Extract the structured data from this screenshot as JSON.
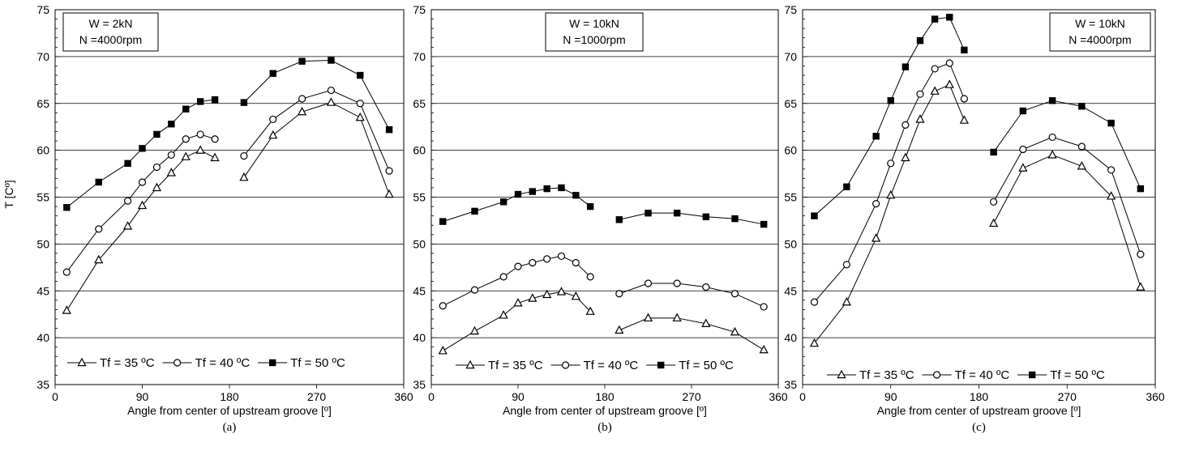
{
  "figure": {
    "ylabel": "T [Cº]",
    "legend_labels": [
      "Tf = 35 ºC",
      "Tf = 40 ºC",
      "Tf = 50 ºC"
    ]
  },
  "chart_data": [
    {
      "type": "line",
      "caption": "(a)",
      "annotation": [
        "W = 2kN",
        "N =4000rpm"
      ],
      "xlabel": "Angle from center of upstream groove [º]",
      "ylabel": "T [Cº]",
      "xlim": [
        0,
        360
      ],
      "ylim": [
        35,
        75
      ],
      "xticks": [
        0,
        90,
        180,
        270,
        360
      ],
      "yticks": [
        35,
        40,
        45,
        50,
        55,
        60,
        65,
        70,
        75
      ],
      "grid": "horizontal",
      "legend": "bottom",
      "series": [
        {
          "name": "Tf = 35 ºC",
          "marker": "triangle-open",
          "segments": [
            {
              "x": [
                12,
                45,
                75,
                90,
                105,
                120,
                135,
                150,
                165
              ],
              "y": [
                42.9,
                48.3,
                51.9,
                54.1,
                56.0,
                57.6,
                59.3,
                60.0,
                59.2
              ]
            },
            {
              "x": [
                195,
                225,
                255,
                285,
                315,
                345
              ],
              "y": [
                57.1,
                61.6,
                64.1,
                65.1,
                63.5,
                55.3
              ]
            }
          ]
        },
        {
          "name": "Tf = 40 ºC",
          "marker": "circle-open",
          "segments": [
            {
              "x": [
                12,
                45,
                75,
                90,
                105,
                120,
                135,
                150,
                165
              ],
              "y": [
                47.0,
                51.6,
                54.6,
                56.6,
                58.2,
                59.5,
                61.2,
                61.7,
                61.2
              ]
            },
            {
              "x": [
                195,
                225,
                255,
                285,
                315,
                345
              ],
              "y": [
                59.4,
                63.3,
                65.5,
                66.4,
                65.0,
                57.8
              ]
            }
          ]
        },
        {
          "name": "Tf = 50 ºC",
          "marker": "square-filled",
          "segments": [
            {
              "x": [
                12,
                45,
                75,
                90,
                105,
                120,
                135,
                150,
                165
              ],
              "y": [
                53.9,
                56.6,
                58.6,
                60.2,
                61.7,
                62.8,
                64.4,
                65.2,
                65.4
              ]
            },
            {
              "x": [
                195,
                225,
                255,
                285,
                315,
                345
              ],
              "y": [
                65.1,
                68.2,
                69.5,
                69.6,
                68.0,
                62.2
              ]
            }
          ]
        }
      ]
    },
    {
      "type": "line",
      "caption": "(b)",
      "annotation": [
        "W = 10kN",
        "N =1000rpm"
      ],
      "xlabel": "Angle from center of upstream groove [º]",
      "xlim": [
        0,
        360
      ],
      "ylim": [
        35,
        75
      ],
      "xticks": [
        0,
        90,
        180,
        270,
        360
      ],
      "yticks": [
        35,
        40,
        45,
        50,
        55,
        60,
        65,
        70,
        75
      ],
      "grid": "horizontal",
      "legend": "bottom",
      "series": [
        {
          "name": "Tf = 35 ºC",
          "marker": "triangle-open",
          "segments": [
            {
              "x": [
                12,
                45,
                75,
                90,
                105,
                120,
                135,
                150,
                165
              ],
              "y": [
                38.6,
                40.7,
                42.4,
                43.7,
                44.2,
                44.6,
                44.9,
                44.4,
                42.8
              ]
            },
            {
              "x": [
                195,
                225,
                255,
                285,
                315,
                345
              ],
              "y": [
                40.8,
                42.1,
                42.1,
                41.5,
                40.6,
                38.7
              ]
            }
          ]
        },
        {
          "name": "Tf = 40 ºC",
          "marker": "circle-open",
          "segments": [
            {
              "x": [
                12,
                45,
                75,
                90,
                105,
                120,
                135,
                150,
                165
              ],
              "y": [
                43.4,
                45.1,
                46.5,
                47.6,
                48.0,
                48.4,
                48.7,
                48.0,
                46.5
              ]
            },
            {
              "x": [
                195,
                225,
                255,
                285,
                315,
                345
              ],
              "y": [
                44.7,
                45.8,
                45.8,
                45.4,
                44.7,
                43.3
              ]
            }
          ]
        },
        {
          "name": "Tf = 50 ºC",
          "marker": "square-filled",
          "segments": [
            {
              "x": [
                12,
                45,
                75,
                90,
                105,
                120,
                135,
                150,
                165
              ],
              "y": [
                52.4,
                53.5,
                54.5,
                55.3,
                55.6,
                55.9,
                56.0,
                55.2,
                54.0
              ]
            },
            {
              "x": [
                195,
                225,
                255,
                285,
                315,
                345
              ],
              "y": [
                52.6,
                53.3,
                53.3,
                52.9,
                52.7,
                52.1
              ]
            }
          ]
        }
      ]
    },
    {
      "type": "line",
      "caption": "(c)",
      "annotation": [
        "W = 10kN",
        "N =4000rpm"
      ],
      "xlabel": "Angle from center of upstream groove [º]",
      "xlim": [
        0,
        360
      ],
      "ylim": [
        35,
        75
      ],
      "xticks": [
        0,
        90,
        180,
        270,
        360
      ],
      "yticks": [
        35,
        40,
        45,
        50,
        55,
        60,
        65,
        70,
        75
      ],
      "grid": "horizontal",
      "legend": "bottom",
      "series": [
        {
          "name": "Tf = 35 ºC",
          "marker": "triangle-open",
          "segments": [
            {
              "x": [
                12,
                45,
                75,
                90,
                105,
                120,
                135,
                150,
                165
              ],
              "y": [
                39.4,
                43.8,
                50.6,
                55.2,
                59.2,
                63.3,
                66.3,
                67.0,
                63.2
              ]
            },
            {
              "x": [
                195,
                225,
                255,
                285,
                315,
                345
              ],
              "y": [
                52.2,
                58.1,
                59.5,
                58.3,
                55.1,
                45.4
              ]
            }
          ]
        },
        {
          "name": "Tf = 40 ºC",
          "marker": "circle-open",
          "segments": [
            {
              "x": [
                12,
                45,
                75,
                90,
                105,
                120,
                135,
                150,
                165
              ],
              "y": [
                43.8,
                47.8,
                54.3,
                58.6,
                62.7,
                66.0,
                68.7,
                69.3,
                65.5
              ]
            },
            {
              "x": [
                195,
                225,
                255,
                285,
                315,
                345
              ],
              "y": [
                54.5,
                60.1,
                61.4,
                60.4,
                57.9,
                48.9
              ]
            }
          ]
        },
        {
          "name": "Tf = 50 ºC",
          "marker": "square-filled",
          "segments": [
            {
              "x": [
                12,
                45,
                75,
                90,
                105,
                120,
                135,
                150,
                165
              ],
              "y": [
                53.0,
                56.1,
                61.5,
                65.3,
                68.9,
                71.7,
                74.0,
                74.2,
                70.7
              ]
            },
            {
              "x": [
                195,
                225,
                255,
                285,
                315,
                345
              ],
              "y": [
                59.8,
                64.2,
                65.3,
                64.7,
                62.9,
                55.9
              ]
            }
          ]
        }
      ]
    }
  ]
}
